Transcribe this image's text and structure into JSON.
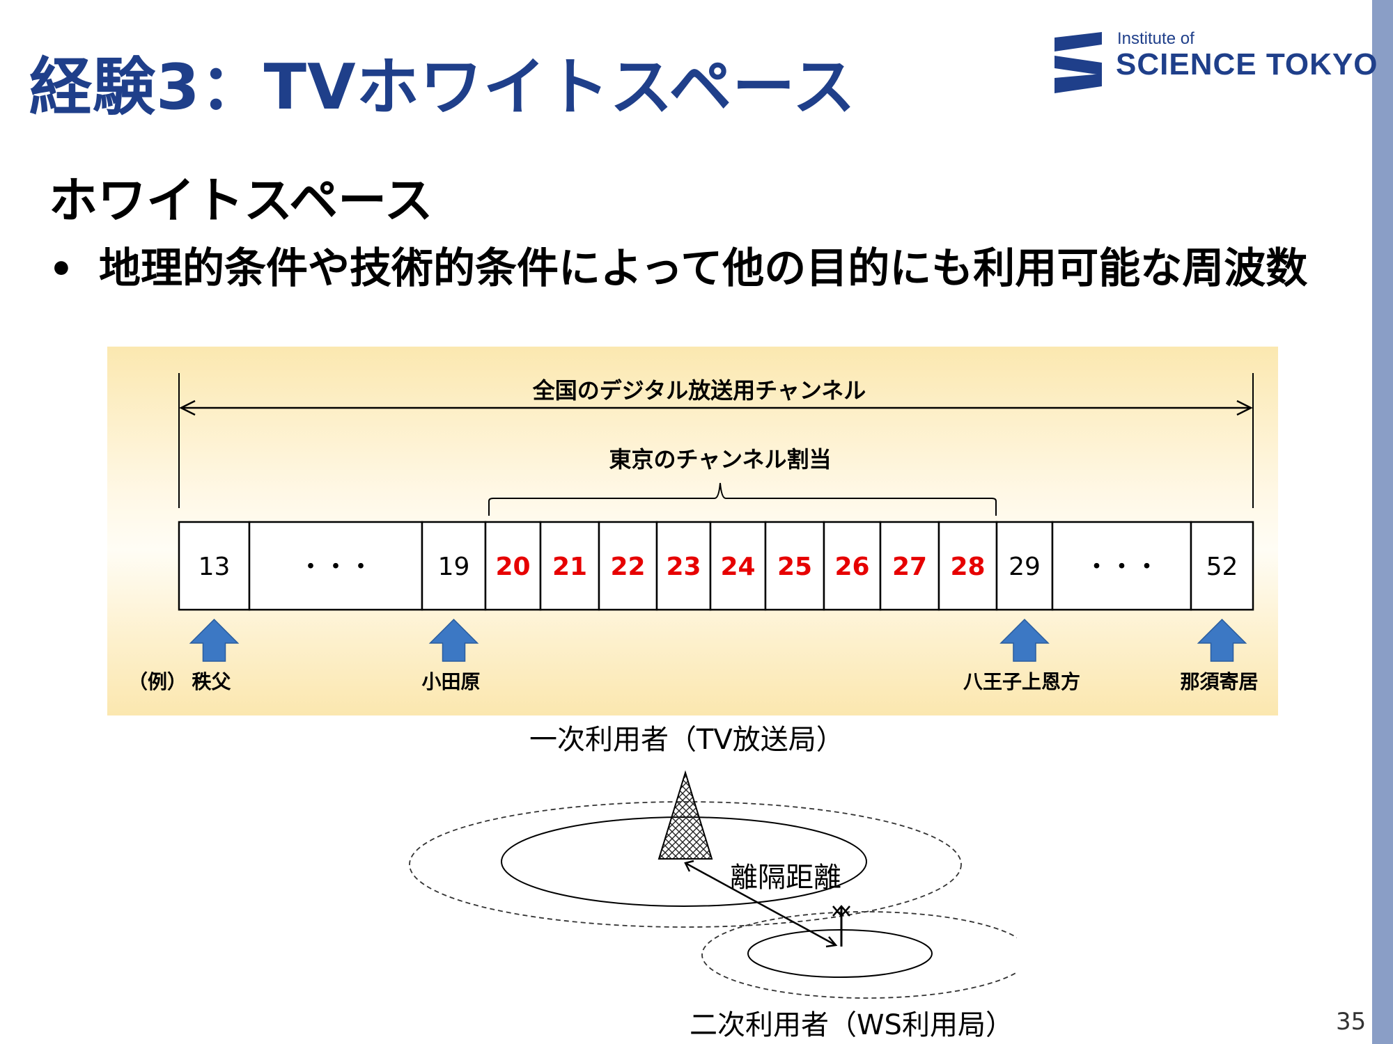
{
  "title": "経験3：TVホワイトスペース",
  "logo": {
    "line1": "Institute of",
    "line2": "SCIENCE TOKYO",
    "color": "#1f3f8a"
  },
  "heading": "ホワイトスペース",
  "bullet": {
    "marker": "•",
    "text": "地理的条件や技術的条件によって他の目的にも利用可能な周波数"
  },
  "channel_figure": {
    "national_label": "全国のデジタル放送用チャンネル",
    "tokyo_label": "東京のチャンネル割当",
    "cells": [
      {
        "label": "13",
        "highlight": false
      },
      {
        "label": "・・・",
        "highlight": false
      },
      {
        "label": "19",
        "highlight": false
      },
      {
        "label": "20",
        "highlight": true
      },
      {
        "label": "21",
        "highlight": true
      },
      {
        "label": "22",
        "highlight": true
      },
      {
        "label": "23",
        "highlight": true
      },
      {
        "label": "24",
        "highlight": true
      },
      {
        "label": "25",
        "highlight": true
      },
      {
        "label": "26",
        "highlight": true
      },
      {
        "label": "27",
        "highlight": true
      },
      {
        "label": "28",
        "highlight": true
      },
      {
        "label": "29",
        "highlight": false
      },
      {
        "label": "・・・",
        "highlight": false
      },
      {
        "label": "52",
        "highlight": false
      }
    ],
    "example_prefix": "（例）",
    "markers": [
      {
        "channel": "13",
        "place": "秩父"
      },
      {
        "channel": "19",
        "place": "小田原"
      },
      {
        "channel": "29",
        "place": "八王子上恩方"
      },
      {
        "channel": "52",
        "place": "那須寄居"
      }
    ],
    "highlight_color": "#e60000",
    "arrow_color": "#3c78c4"
  },
  "coverage_diagram": {
    "primary_label": "一次利用者（TV放送局）",
    "distance_label": "離隔距離",
    "secondary_label": "二次利用者（WS利用局）"
  },
  "page_number": "35"
}
